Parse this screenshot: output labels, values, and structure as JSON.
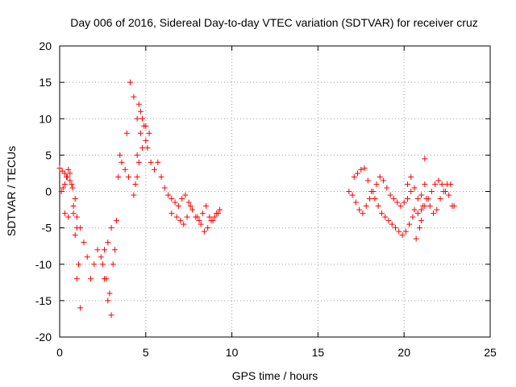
{
  "chart_data": {
    "type": "scatter",
    "title": "Day 006 of 2016, Sidereal Day-to-day VTEC variation (SDTVAR) for receiver cruz",
    "xlabel": "GPS time / hours",
    "ylabel": "SDTVAR / TECUs",
    "xlim": [
      0,
      25
    ],
    "ylim": [
      -20,
      20
    ],
    "xticks": [
      "0",
      "5",
      "10",
      "15",
      "20",
      "25"
    ],
    "yticks": [
      "-20",
      "-15",
      "-10",
      "-5",
      "0",
      "5",
      "10",
      "15",
      "20"
    ],
    "grid": true,
    "marker": "+",
    "color": "#ff0000",
    "series": [
      {
        "name": "SDTVAR",
        "x": [
          0.0,
          0.15,
          0.3,
          0.45,
          0.6,
          0.75,
          0.9,
          1.0,
          1.1,
          1.2,
          1.0,
          0.9,
          0.8,
          0.7,
          0.6,
          0.5,
          0.4,
          0.3,
          0.2,
          0.1,
          0.3,
          0.5,
          0.8,
          1.0,
          1.2,
          1.4,
          1.6,
          1.8,
          2.0,
          2.2,
          2.4,
          2.6,
          2.8,
          3.0,
          2.9,
          2.7,
          2.5,
          2.6,
          2.8,
          3.0,
          3.2,
          3.1,
          3.3,
          3.4,
          3.5,
          3.6,
          3.8,
          4.0,
          3.9,
          4.1,
          4.3,
          4.5,
          4.6,
          4.7,
          4.8,
          5.0,
          5.2,
          5.0,
          4.8,
          4.6,
          4.5,
          4.4,
          4.3,
          4.5,
          4.7,
          4.9,
          5.1,
          5.3,
          5.5,
          5.7,
          5.9,
          6.1,
          6.3,
          6.5,
          6.7,
          6.9,
          7.1,
          7.3,
          7.5,
          7.7,
          7.9,
          8.1,
          8.3,
          8.5,
          8.7,
          8.9,
          9.1,
          9.3,
          8.0,
          8.2,
          8.4,
          8.6,
          8.8,
          9.0,
          9.2,
          6.5,
          6.8,
          7.0,
          7.2,
          7.4,
          7.6,
          16.8,
          17.0,
          17.2,
          17.4,
          17.6,
          17.8,
          18.0,
          18.2,
          18.4,
          18.6,
          18.8,
          19.0,
          19.2,
          19.4,
          19.6,
          19.8,
          20.0,
          20.2,
          20.4,
          17.1,
          17.3,
          17.5,
          17.7,
          17.9,
          18.1,
          18.3,
          18.5,
          18.7,
          18.9,
          19.1,
          19.3,
          19.5,
          19.7,
          19.9,
          20.1,
          20.3,
          20.5,
          20.7,
          20.9,
          21.0,
          21.2,
          21.1,
          20.6,
          20.8,
          21.0,
          21.2,
          21.4,
          21.6,
          21.8,
          22.0,
          22.2,
          22.4,
          22.6,
          22.8,
          21.3,
          21.5,
          21.7,
          21.9,
          22.1,
          22.3,
          22.5,
          22.7,
          22.9,
          20.2,
          20.4,
          20.6,
          20.8,
          21.0,
          21.2
        ],
        "y": [
          3.2,
          2.8,
          2.5,
          2.0,
          1.5,
          0.5,
          -1.0,
          -5.0,
          -10.0,
          -16.0,
          -12.0,
          -6.0,
          -2.0,
          1.0,
          2.5,
          3.0,
          2.0,
          1.0,
          0.5,
          0.0,
          -3.0,
          -3.5,
          -3.0,
          -3.5,
          -5.0,
          -7.0,
          -9.0,
          -12.0,
          -10.0,
          -8.0,
          -9.0,
          -12.0,
          -15.0,
          -17.0,
          -14.0,
          -12.0,
          -10.0,
          -8.0,
          -7.0,
          -5.0,
          -8.0,
          -10.0,
          -4.0,
          2.0,
          5.0,
          4.0,
          3.0,
          2.0,
          8.0,
          15.0,
          13.0,
          10.0,
          12.0,
          11.0,
          10.0,
          9.0,
          8.0,
          7.0,
          6.0,
          4.0,
          2.0,
          1.0,
          -0.5,
          5.0,
          8.0,
          9.0,
          6.0,
          4.0,
          3.0,
          4.0,
          2.0,
          0.5,
          -0.5,
          -1.0,
          -1.5,
          -2.0,
          -1.0,
          -0.5,
          -1.5,
          -2.5,
          -3.5,
          -4.0,
          -3.0,
          -2.0,
          -3.5,
          -4.0,
          -3.0,
          -2.5,
          -3.5,
          -4.5,
          -5.5,
          -5.0,
          -4.0,
          -3.5,
          -3.0,
          -3.0,
          -3.5,
          -4.0,
          -4.5,
          -3.5,
          -2.0,
          0.0,
          -0.5,
          -1.5,
          -2.5,
          -3.0,
          -2.0,
          -1.0,
          0.0,
          1.0,
          2.0,
          1.5,
          0.5,
          -0.5,
          -1.0,
          -1.5,
          -2.0,
          -1.5,
          -1.0,
          0.0,
          2.0,
          2.5,
          3.0,
          3.2,
          1.5,
          0.0,
          -1.0,
          -2.0,
          -3.0,
          -3.5,
          -4.0,
          -4.5,
          -5.0,
          -5.5,
          -6.0,
          -5.5,
          -4.5,
          -3.5,
          -6.5,
          -5.0,
          -4.0,
          4.5,
          -2.0,
          -2.5,
          -3.0,
          -2.5,
          -2.0,
          -1.0,
          0.0,
          1.0,
          1.5,
          1.0,
          0.0,
          -0.5,
          -2.0,
          -1.0,
          -2.0,
          -3.0,
          -2.5,
          -1.0,
          0.0,
          1.0,
          1.0,
          -2.0,
          1.0,
          2.0,
          0.5,
          -1.0,
          -0.5,
          1.0
        ]
      }
    ]
  }
}
